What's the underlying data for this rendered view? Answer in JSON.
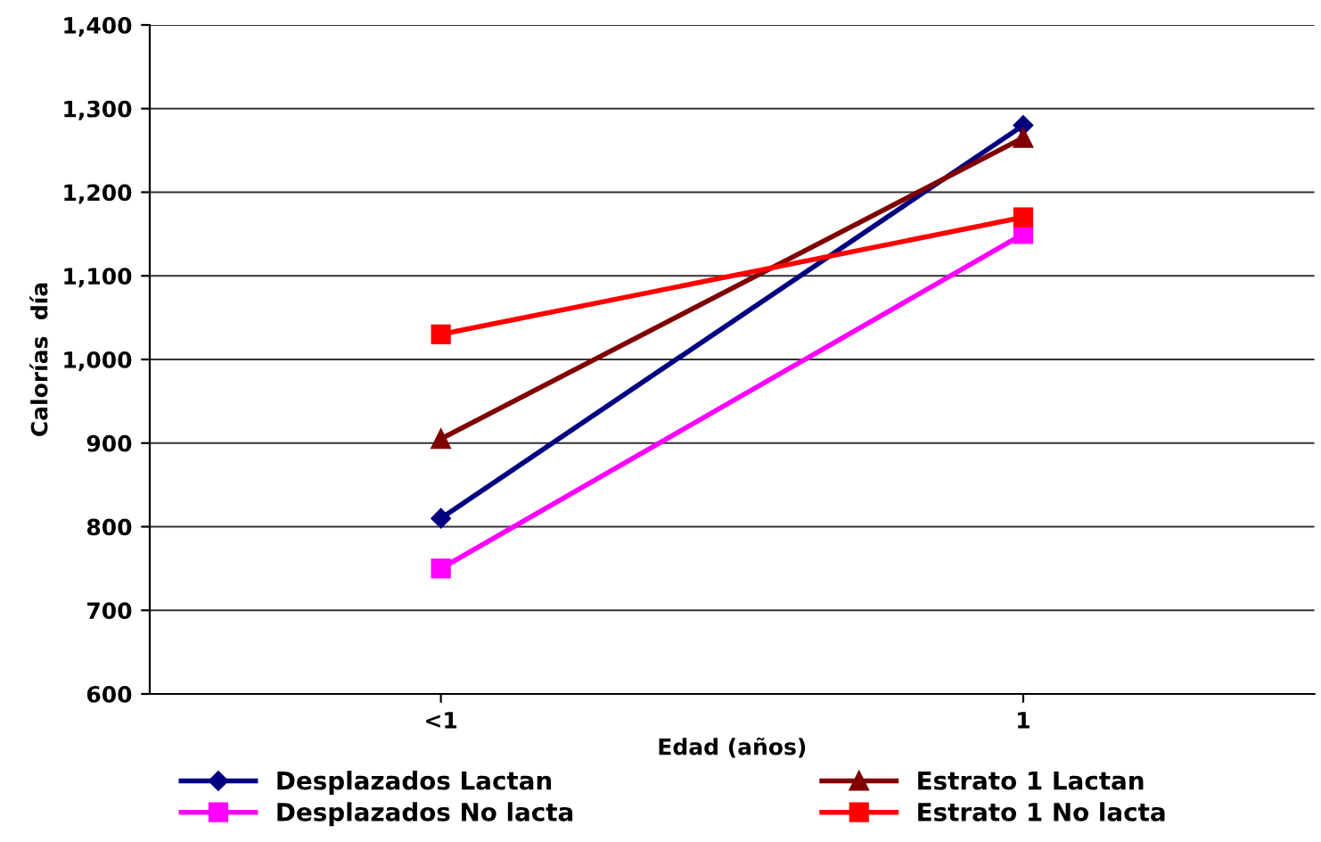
{
  "chart_data": {
    "type": "line",
    "xlabel": "Edad (años)",
    "ylabel": "Calorías  día",
    "categories": [
      "<1",
      "1"
    ],
    "series": [
      {
        "name": "Desplazados Lactan",
        "color": "#000080",
        "marker": "diamond",
        "values": [
          810,
          1280
        ]
      },
      {
        "name": "Desplazados No lacta",
        "color": "#ff00ff",
        "marker": "square",
        "values": [
          750,
          1150
        ]
      },
      {
        "name": "Estrato 1 Lactan",
        "color": "#800000",
        "marker": "triangle",
        "values": [
          905,
          1265
        ]
      },
      {
        "name": "Estrato 1 No lacta",
        "color": "#ff0000",
        "marker": "square",
        "values": [
          1030,
          1170
        ]
      }
    ],
    "ylim": [
      600,
      1400
    ],
    "yticks": [
      {
        "value": 600,
        "label": "600"
      },
      {
        "value": 700,
        "label": "700"
      },
      {
        "value": 800,
        "label": "800"
      },
      {
        "value": 900,
        "label": "900"
      },
      {
        "value": 1000,
        "label": "1,000"
      },
      {
        "value": 1100,
        "label": "1,100"
      },
      {
        "value": 1200,
        "label": "1,200"
      },
      {
        "value": 1300,
        "label": "1,300"
      },
      {
        "value": 1400,
        "label": "1,400"
      }
    ],
    "grid": "y",
    "legend": "bottom",
    "line_style": "solid"
  }
}
